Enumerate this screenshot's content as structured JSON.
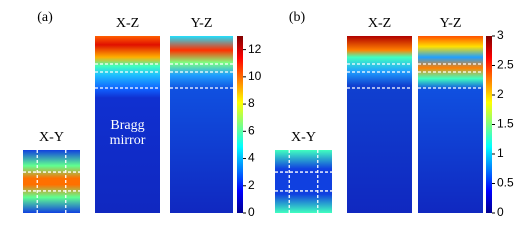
{
  "chart_data": [
    {
      "type": "heatmap",
      "panel_label": "(a)",
      "subplot_titles": [
        "X-Y",
        "X-Z",
        "Y-Z"
      ],
      "annotations": [
        "Bragg",
        "mirror"
      ],
      "colorbar": {
        "lim": [
          0,
          13
        ],
        "ticks": [
          0,
          2,
          4,
          6,
          8,
          10,
          12
        ]
      }
    },
    {
      "type": "heatmap",
      "panel_label": "(b)",
      "subplot_titles": [
        "X-Y",
        "X-Z",
        "Y-Z"
      ],
      "colorbar": {
        "lim": [
          0,
          3
        ],
        "ticks": [
          0,
          0.5,
          1,
          1.5,
          2,
          2.5,
          3
        ]
      }
    }
  ]
}
